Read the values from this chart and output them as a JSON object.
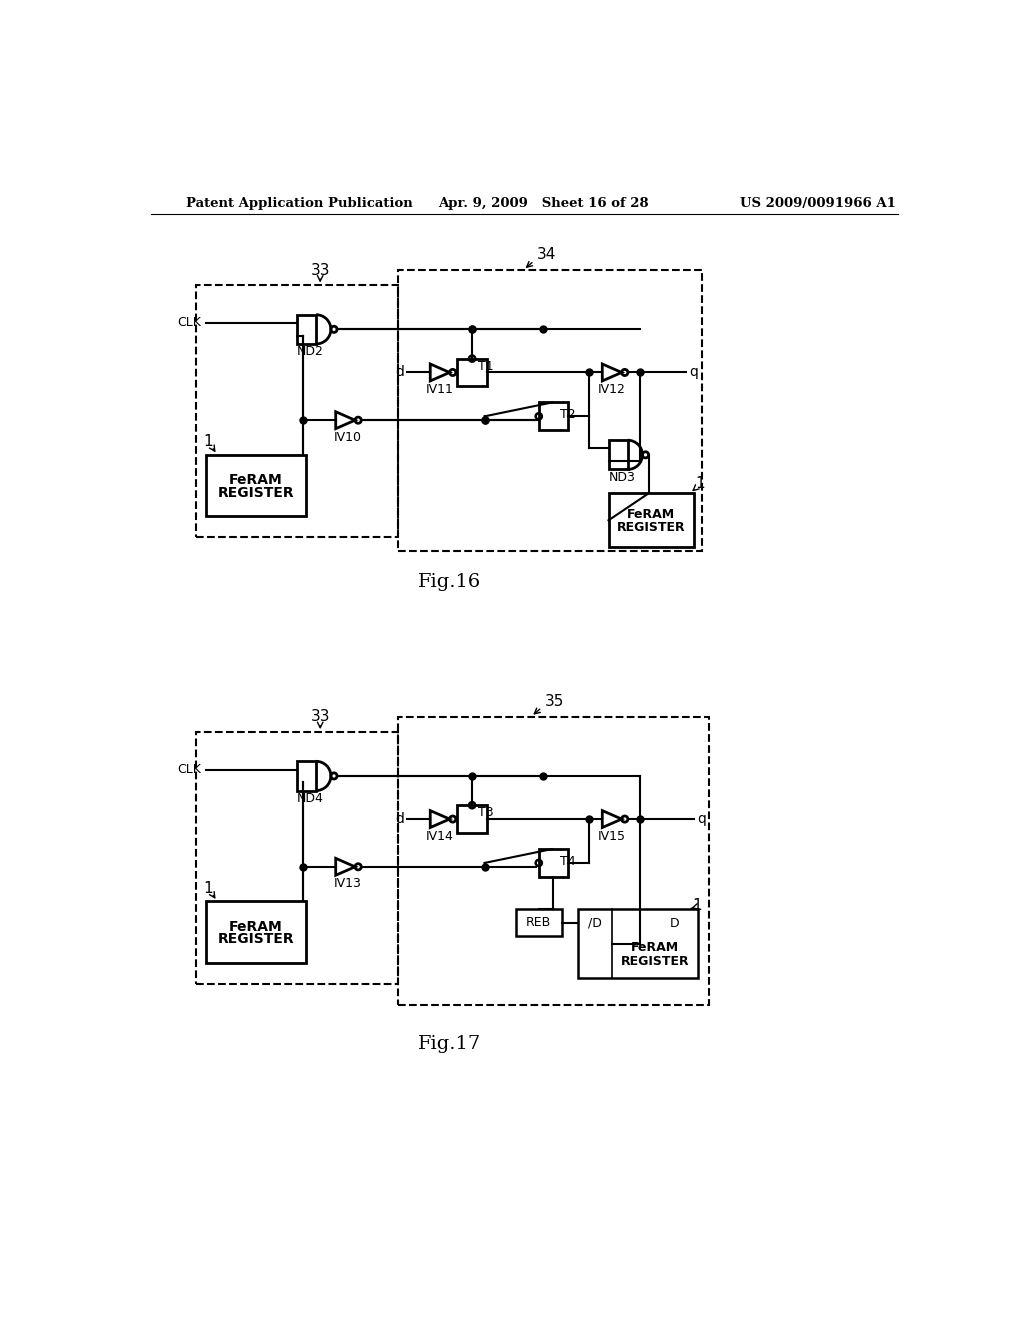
{
  "bg_color": "#ffffff",
  "header_left": "Patent Application Publication",
  "header_center": "Apr. 9, 2009   Sheet 16 of 28",
  "header_right": "US 2009/0091966 A1",
  "fig16_label": "Fig.16",
  "fig17_label": "Fig.17"
}
